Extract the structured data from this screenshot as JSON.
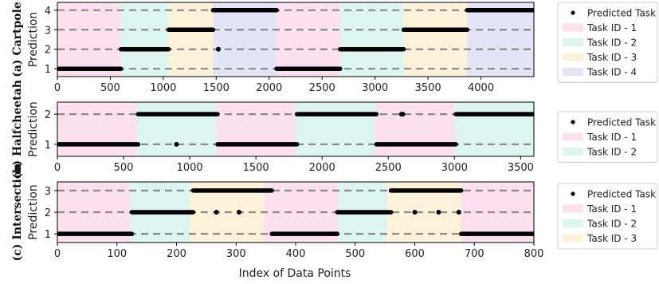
{
  "figure": {
    "xlabel": "Index of Data Points"
  },
  "chart_data": [
    {
      "type": "scatter",
      "row_label": "(a) Cartpole",
      "ylabel": "Prediction",
      "xlim": [
        0,
        4500
      ],
      "ylim": [
        0.6,
        4.4
      ],
      "x_ticks": [
        0,
        500,
        1000,
        1500,
        2000,
        2500,
        3000,
        3500,
        4000
      ],
      "y_ticks": [
        1,
        2,
        3,
        4
      ],
      "grid": "dashed horizontal at y ticks",
      "legend_position": "right",
      "legend": [
        "Predicted Task",
        "Task ID - 1",
        "Task ID - 2",
        "Task ID - 3",
        "Task ID - 4"
      ],
      "task_colors": [
        "#fde0ef",
        "#ddf5f1",
        "#fdf1d9",
        "#e3e5f7"
      ],
      "task_segments": [
        {
          "task": 1,
          "start": 0,
          "end": 600
        },
        {
          "task": 2,
          "start": 600,
          "end": 1050
        },
        {
          "task": 3,
          "start": 1050,
          "end": 1470
        },
        {
          "task": 4,
          "start": 1470,
          "end": 2070
        },
        {
          "task": 1,
          "start": 2070,
          "end": 2670
        },
        {
          "task": 2,
          "start": 2670,
          "end": 3270
        },
        {
          "task": 3,
          "start": 3270,
          "end": 3870
        },
        {
          "task": 4,
          "start": 3870,
          "end": 4500
        }
      ],
      "predicted_runs": [
        {
          "value": 1,
          "start": 0,
          "end": 600
        },
        {
          "value": 2,
          "start": 600,
          "end": 1050
        },
        {
          "value": 3,
          "start": 1050,
          "end": 1470
        },
        {
          "value": 4,
          "start": 1470,
          "end": 2070
        },
        {
          "value": 1,
          "start": 2070,
          "end": 2670
        },
        {
          "value": 2,
          "start": 2670,
          "end": 3270
        },
        {
          "value": 3,
          "start": 3270,
          "end": 3870
        },
        {
          "value": 4,
          "start": 3870,
          "end": 4500
        }
      ],
      "predicted_points": [
        {
          "x": 1520,
          "y": 2
        }
      ]
    },
    {
      "type": "scatter",
      "row_label": "(b) Halfcheetah",
      "ylabel": "Prediction",
      "xlim": [
        0,
        3600
      ],
      "ylim": [
        0.6,
        2.4
      ],
      "x_ticks": [
        0,
        500,
        1000,
        1500,
        2000,
        2500,
        3000,
        3500
      ],
      "y_ticks": [
        1,
        2
      ],
      "grid": "dashed horizontal at y ticks",
      "legend_position": "right",
      "legend": [
        "Predicted Task",
        "Task ID - 1",
        "Task ID - 2"
      ],
      "task_colors": [
        "#fde0ef",
        "#ddf5f1"
      ],
      "task_segments": [
        {
          "task": 1,
          "start": 0,
          "end": 600
        },
        {
          "task": 2,
          "start": 600,
          "end": 1200
        },
        {
          "task": 1,
          "start": 1200,
          "end": 1800
        },
        {
          "task": 2,
          "start": 1800,
          "end": 2400
        },
        {
          "task": 1,
          "start": 2400,
          "end": 3000
        },
        {
          "task": 2,
          "start": 3000,
          "end": 3600
        }
      ],
      "predicted_runs": [
        {
          "value": 1,
          "start": 0,
          "end": 610
        },
        {
          "value": 2,
          "start": 610,
          "end": 1210
        },
        {
          "value": 1,
          "start": 1210,
          "end": 1810
        },
        {
          "value": 2,
          "start": 1810,
          "end": 2410
        },
        {
          "value": 1,
          "start": 2410,
          "end": 3010
        },
        {
          "value": 2,
          "start": 3010,
          "end": 3600
        }
      ],
      "predicted_points": [
        {
          "x": 900,
          "y": 1
        },
        {
          "x": 2600,
          "y": 2
        },
        {
          "x": 2610,
          "y": 2
        }
      ]
    },
    {
      "type": "scatter",
      "row_label": "(c) Intersection",
      "ylabel": "Prediction",
      "xlim": [
        0,
        800
      ],
      "ylim": [
        0.6,
        3.4
      ],
      "x_ticks": [
        0,
        100,
        200,
        300,
        400,
        500,
        600,
        700,
        800
      ],
      "y_ticks": [
        1,
        2,
        3
      ],
      "grid": "dashed horizontal at y ticks",
      "legend_position": "right",
      "legend": [
        "Predicted Task",
        "Task ID - 1",
        "Task ID - 2",
        "Task ID - 3"
      ],
      "task_colors": [
        "#fde0ef",
        "#ddf5f1",
        "#fdf1d9"
      ],
      "task_segments": [
        {
          "task": 1,
          "start": 0,
          "end": 122
        },
        {
          "task": 2,
          "start": 122,
          "end": 222
        },
        {
          "task": 3,
          "start": 222,
          "end": 347
        },
        {
          "task": 1,
          "start": 347,
          "end": 472
        },
        {
          "task": 2,
          "start": 472,
          "end": 553
        },
        {
          "task": 3,
          "start": 553,
          "end": 678
        },
        {
          "task": 1,
          "start": 678,
          "end": 800
        }
      ],
      "predicted_runs": [
        {
          "value": 1,
          "start": 0,
          "end": 125
        },
        {
          "value": 2,
          "start": 125,
          "end": 228
        },
        {
          "value": 3,
          "start": 228,
          "end": 360
        },
        {
          "value": 1,
          "start": 360,
          "end": 470
        },
        {
          "value": 2,
          "start": 470,
          "end": 560
        },
        {
          "value": 3,
          "start": 560,
          "end": 678
        },
        {
          "value": 1,
          "start": 678,
          "end": 800
        }
      ],
      "predicted_points": [
        {
          "x": 267,
          "y": 2
        },
        {
          "x": 305,
          "y": 2
        },
        {
          "x": 600,
          "y": 2
        },
        {
          "x": 640,
          "y": 2
        },
        {
          "x": 674,
          "y": 2
        }
      ]
    }
  ]
}
